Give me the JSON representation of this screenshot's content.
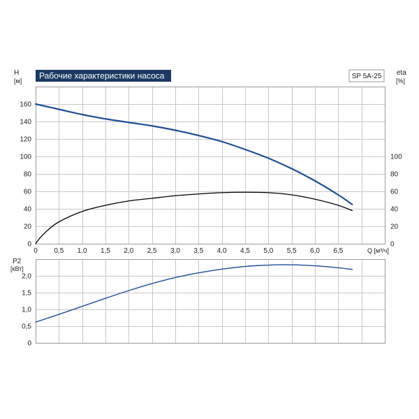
{
  "chart_data": [
    {
      "type": "line",
      "title": "Рабочие характеристики насоса",
      "model_label": "SP 5A-25",
      "x_axis": {
        "unit_label": "Q [м³/ч]",
        "ticks": [
          "0",
          "0,5",
          "1,0",
          "1,5",
          "2,0",
          "2,5",
          "3,0",
          "3,5",
          "4,0",
          "4,5",
          "5,0",
          "5,5",
          "6,0",
          "6,5"
        ],
        "xlim": [
          0,
          7.5
        ]
      },
      "y_axis_left": {
        "label": "H",
        "unit": "[м]",
        "ticks": [
          "0",
          "20",
          "40",
          "60",
          "80",
          "100",
          "120",
          "140",
          "160"
        ],
        "ylim": [
          0,
          180
        ]
      },
      "y_axis_right": {
        "label": "eta",
        "unit": "[%]",
        "ticks": [
          "0",
          "20",
          "40",
          "60",
          "80",
          "100"
        ],
        "ylim": [
          0,
          180
        ]
      },
      "grid": true,
      "colors": {
        "head": "#1f4e96",
        "efficiency": "#000000",
        "title_bg": "#1b3a63"
      },
      "series": [
        {
          "axis": "left",
          "x": [
            0,
            0.5,
            1.0,
            1.5,
            2.0,
            2.5,
            3.0,
            3.5,
            4.0,
            4.5,
            5.0,
            5.5,
            6.0,
            6.5,
            6.8
          ],
          "values": [
            160,
            154,
            148,
            143,
            139,
            135,
            130,
            124,
            117,
            108,
            98,
            86,
            72,
            56,
            45
          ]
        },
        {
          "axis": "right",
          "x": [
            0,
            0.1,
            0.25,
            0.5,
            1.0,
            1.5,
            2.0,
            2.5,
            3.0,
            3.5,
            4.0,
            4.5,
            5.0,
            5.5,
            6.0,
            6.5,
            6.8
          ],
          "values": [
            0,
            7,
            15,
            25,
            37,
            44,
            49,
            52,
            55,
            57,
            58.5,
            59,
            58.5,
            56,
            51,
            44,
            38
          ]
        }
      ]
    },
    {
      "type": "line",
      "x_axis": {
        "xlim": [
          0,
          7.5
        ]
      },
      "y_axis_left": {
        "label": "P2",
        "unit": "[кВт]",
        "ticks": [
          "0",
          "0,5",
          "1,0",
          "1,5",
          "2,0"
        ],
        "ylim": [
          0,
          2.5
        ]
      },
      "grid": true,
      "colors": {
        "power": "#1f4e96"
      },
      "series": [
        {
          "axis": "left",
          "x": [
            0,
            0.5,
            1.0,
            1.5,
            2.0,
            2.5,
            3.0,
            3.5,
            4.0,
            4.5,
            5.0,
            5.5,
            6.0,
            6.5,
            6.8
          ],
          "values": [
            0.62,
            0.85,
            1.09,
            1.33,
            1.56,
            1.77,
            1.95,
            2.09,
            2.2,
            2.28,
            2.32,
            2.33,
            2.3,
            2.24,
            2.19
          ]
        }
      ]
    }
  ]
}
